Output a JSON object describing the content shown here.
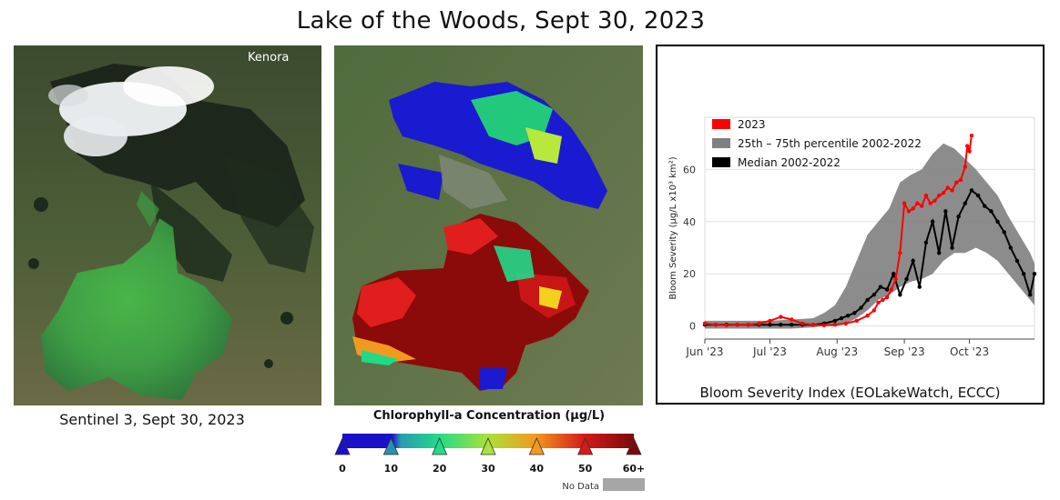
{
  "title": "Lake of the Woods, Sept 30, 2023",
  "left_panel": {
    "caption": "Sentinel 3, Sept 30, 2023",
    "place_label": "Kenora"
  },
  "colorbar": {
    "title": "Chlorophyll-a Concentration (µg/L)",
    "ticks": [
      "0",
      "10",
      "20",
      "30",
      "40",
      "50",
      "60+"
    ],
    "colors": [
      "#1a10c8",
      "#1a10c8",
      "#2a9bb0",
      "#22d98a",
      "#a8e23a",
      "#f29a1e",
      "#d41a1a",
      "#7a0a0a"
    ],
    "nodata_label": "No Data",
    "nodata_color": "#a6a6a6"
  },
  "chart_data": {
    "type": "line",
    "caption": "Bloom Severity Index (EOLakeWatch, ECCC)",
    "ylabel": "Bloom Severity (µg/L x10³ km²)",
    "xlabel": "",
    "x_ticks": [
      "Jun '23",
      "Jul '23",
      "Aug '23",
      "Sep '23",
      "Oct '23"
    ],
    "x_tick_days": [
      0,
      30,
      61,
      92,
      122
    ],
    "x_range_days": [
      0,
      152
    ],
    "y_ticks": [
      0,
      20,
      40,
      60
    ],
    "ylim": [
      -5,
      80
    ],
    "grid": true,
    "legend_position": "top-left",
    "series": [
      {
        "name": "2023",
        "color": "#ff0000",
        "x_days": [
          0,
          5,
          10,
          15,
          20,
          25,
          30,
          35,
          40,
          45,
          50,
          55,
          60,
          65,
          70,
          75,
          78,
          80,
          82,
          84,
          86,
          88,
          90,
          92,
          94,
          96,
          98,
          100,
          102,
          104,
          106,
          108,
          110,
          112,
          114,
          116,
          118,
          120,
          121,
          122,
          123
        ],
        "values": [
          1,
          0.5,
          0.3,
          0.5,
          0.5,
          1,
          2,
          3.5,
          2.5,
          1,
          0.5,
          0.3,
          0.5,
          1,
          2,
          4,
          6,
          9,
          10,
          11,
          14,
          18,
          28,
          47,
          44,
          45,
          47,
          46,
          50,
          47,
          48,
          50,
          51,
          53,
          52,
          55,
          56,
          61,
          69,
          67,
          73
        ]
      },
      {
        "name": "25th – 75th percentile 2002-2022",
        "color": "#808080",
        "x_days": [
          0,
          10,
          20,
          30,
          40,
          50,
          55,
          60,
          65,
          70,
          75,
          80,
          85,
          90,
          95,
          100,
          105,
          110,
          115,
          120,
          125,
          130,
          135,
          140,
          145,
          150,
          152
        ],
        "lower": [
          -1,
          -1,
          -1,
          -1,
          -1,
          -0.5,
          0,
          0,
          1,
          3,
          6,
          10,
          12,
          15,
          17,
          18,
          20,
          25,
          28,
          28,
          30,
          28,
          25,
          20,
          15,
          10,
          8
        ],
        "upper": [
          2,
          2,
          2,
          2,
          2.5,
          3,
          5,
          8,
          15,
          25,
          35,
          40,
          45,
          55,
          58,
          60,
          66,
          70,
          68,
          64,
          60,
          55,
          50,
          42,
          35,
          28,
          24
        ]
      },
      {
        "name": "Median 2002-2022",
        "color": "#000000",
        "x_days": [
          0,
          5,
          10,
          15,
          20,
          25,
          30,
          35,
          40,
          45,
          50,
          55,
          60,
          63,
          66,
          69,
          72,
          75,
          78,
          81,
          84,
          87,
          90,
          93,
          96,
          99,
          102,
          105,
          108,
          111,
          114,
          117,
          120,
          123,
          126,
          129,
          132,
          135,
          138,
          141,
          144,
          147,
          150,
          152
        ],
        "values": [
          0.5,
          0.5,
          0.5,
          0.5,
          0.5,
          0.5,
          0.5,
          0.5,
          0.5,
          0.5,
          0.5,
          1,
          2,
          3,
          4,
          5,
          7,
          10,
          12,
          15,
          14,
          20,
          12,
          18,
          25,
          15,
          32,
          40,
          28,
          44,
          30,
          42,
          47,
          52,
          50,
          46,
          44,
          40,
          36,
          30,
          25,
          20,
          12,
          20
        ]
      }
    ]
  }
}
